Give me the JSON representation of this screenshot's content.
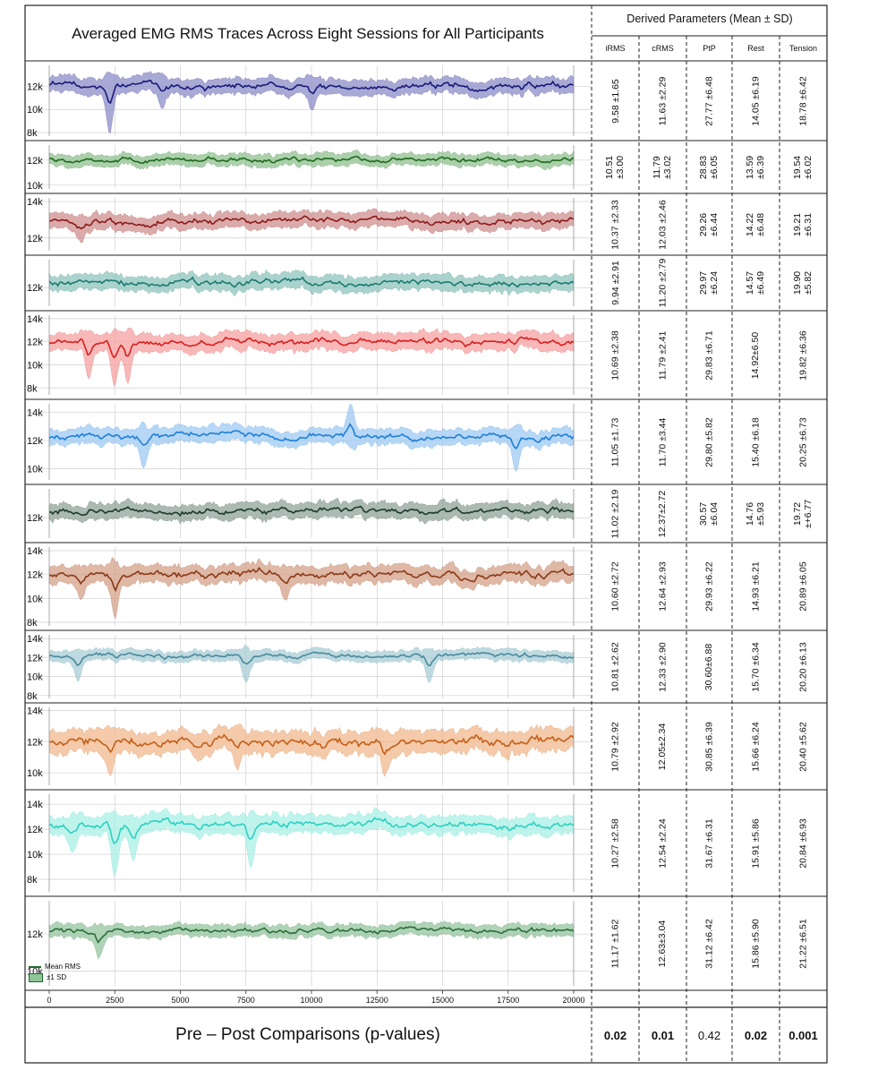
{
  "title": "Averaged EMG RMS Traces Across Eight Sessions for All Participants",
  "table": {
    "header": "Derived Parameters (Mean ± SD)",
    "columns": [
      "iRMS",
      "cRMS",
      "PtP",
      "Rest",
      "Tension"
    ],
    "rows": [
      [
        "9.58 ±1.65",
        "11.63 ±2.29",
        "27.77 ±6.48",
        "14.05 ±6.19",
        "18.78 ±6.42"
      ],
      [
        "10.51\n±3.00",
        "11.79\n±3.02",
        "28.83\n±6.05",
        "13.59\n±6.39",
        "19.54\n±6.02"
      ],
      [
        "10.37 ±2.33",
        "12.03 ±2.46",
        "29.26\n±6.44",
        "14.22\n±6.48",
        "19.21\n±6.31"
      ],
      [
        "9.94 ±2.91",
        "11.20 ±2.79",
        "29.97\n±6.24",
        "14.57\n±6.49",
        "19.90\n±5.82"
      ],
      [
        "10.69 ±2.38",
        "11.79 ±2.41",
        "29.83 ±6.71",
        "14.92±6.50",
        "19.82 ±6.36"
      ],
      [
        "11.05 ±1.73",
        "11.70 ±3.44",
        "29.80 ±5.82",
        "15.40 ±6.18",
        "20.25 ±6.73"
      ],
      [
        "11.02 ±2.19",
        "12.37±2.72",
        "30.57\n±6.04",
        "14.76\n±5.93",
        "19.72\n±+6.77"
      ],
      [
        "10.60 ±2.72",
        "12.64 ±2.93",
        "29.93 ±6.22",
        "14.93 ±6.21",
        "20.89 ±6.05"
      ],
      [
        "10.81 ±2.62",
        "12.33 ±2.90",
        "30.60±6.88",
        "15.70 ±6.34",
        "20.20 ±6.13"
      ],
      [
        "10.79 ±2.92",
        "12.05±2.34",
        "30.85 ±6.39",
        "15.66 ±6.24",
        "20.40 ±5.62"
      ],
      [
        "10.27 ±2.58",
        "12.54 ±2.24",
        "31.67 ±6.31",
        "15.91 ±5.86",
        "20.84 ±6.93"
      ],
      [
        "11.17 ±1.62",
        "12.63±3.04",
        "31.12 ±6.42",
        "15.86 ±5.90",
        "21.22 ±6.51"
      ]
    ],
    "footer_label": "Pre – Post Comparisons (p-values)",
    "p_values": [
      "0.02",
      "0.01",
      "0.42",
      "0.02",
      "0.001"
    ],
    "p_bold": [
      true,
      true,
      false,
      true,
      true
    ]
  },
  "legend": {
    "mean": "Mean RMS",
    "sd": "±1 SD"
  },
  "chart_data": {
    "type": "line",
    "title": "Averaged EMG RMS Traces Across Eight Sessions for All Participants",
    "x_ticks": [
      0,
      2500,
      5000,
      7500,
      10000,
      12500,
      15000,
      17500,
      20000
    ],
    "x_tick_labels": [
      "0",
      "2500",
      "5000",
      "7500",
      "10000",
      "12500",
      "15000",
      "17500",
      "20000"
    ],
    "xlim": [
      0,
      20000
    ],
    "grid": true,
    "legend_position": "bottom-left",
    "series": [
      {
        "color": "#1a1a7a",
        "fill": "#8c8cc8",
        "ylim": [
          7700,
          13800
        ],
        "y_ticks": [
          8000,
          10000,
          12000
        ],
        "y_tick_labels": [
          "8k",
          "10k",
          "12k"
        ],
        "mean": 12000,
        "sd": 600,
        "dips": [
          [
            2300,
            3400
          ],
          [
            4300,
            1500
          ],
          [
            10000,
            1500
          ]
        ]
      },
      {
        "color": "#1e6b1e",
        "fill": "#8fc08f",
        "ylim": [
          9700,
          13200
        ],
        "y_ticks": [
          10000,
          12000
        ],
        "y_tick_labels": [
          "10k",
          "12k"
        ],
        "mean": 12000,
        "sd": 420,
        "dips": []
      },
      {
        "color": "#8b1a1a",
        "fill": "#cf8f8f",
        "ylim": [
          11300,
          14200
        ],
        "y_ticks": [
          12000,
          14000
        ],
        "y_tick_labels": [
          "12k",
          "14k"
        ],
        "mean": 12900,
        "sd": 380,
        "dips": [
          [
            1200,
            600
          ]
        ]
      },
      {
        "color": "#1a7a70",
        "fill": "#8fc4be",
        "ylim": [
          10800,
          13800
        ],
        "y_ticks": [
          12000
        ],
        "y_tick_labels": [
          "12k"
        ],
        "mean": 12300,
        "sd": 450,
        "dips": []
      },
      {
        "color": "#d62020",
        "fill": "#f5a0a0",
        "ylim": [
          7400,
          14300
        ],
        "y_ticks": [
          8000,
          10000,
          12000,
          14000
        ],
        "y_tick_labels": [
          "8k",
          "10k",
          "12k",
          "14k"
        ],
        "mean": 12000,
        "sd": 650,
        "dips": [
          [
            1500,
            2200
          ],
          [
            2500,
            2800
          ],
          [
            3000,
            2600
          ]
        ]
      },
      {
        "color": "#1e7fd8",
        "fill": "#9ec9f2",
        "ylim": [
          9200,
          14600
        ],
        "y_ticks": [
          10000,
          12000,
          14000
        ],
        "y_tick_labels": [
          "10k",
          "12k",
          "14k"
        ],
        "mean": 12300,
        "sd": 500,
        "dips": [
          [
            3600,
            1700
          ],
          [
            11500,
            -1800
          ],
          [
            17800,
            1800
          ]
        ]
      },
      {
        "color": "#1e3a2e",
        "fill": "#8fa398",
        "ylim": [
          10800,
          13700
        ],
        "y_ticks": [
          12000
        ],
        "y_tick_labels": [
          "12k"
        ],
        "mean": 12400,
        "sd": 400,
        "dips": []
      },
      {
        "color": "#8b3a18",
        "fill": "#d4a088",
        "ylim": [
          7700,
          14300
        ],
        "y_ticks": [
          8000,
          10000,
          12000,
          14000
        ],
        "y_tick_labels": [
          "8k",
          "10k",
          "12k",
          "14k"
        ],
        "mean": 12000,
        "sd": 650,
        "dips": [
          [
            2500,
            2900
          ],
          [
            1200,
            1200
          ],
          [
            9000,
            1400
          ]
        ]
      },
      {
        "color": "#4a8a9e",
        "fill": "#a8cdd6",
        "ylim": [
          7700,
          14400
        ],
        "y_ticks": [
          8000,
          10000,
          12000,
          14000
        ],
        "y_tick_labels": [
          "8k",
          "10k",
          "12k",
          "14k"
        ],
        "mean": 12200,
        "sd": 500,
        "dips": [
          [
            1100,
            2000
          ],
          [
            7500,
            2300
          ],
          [
            14500,
            2200
          ]
        ]
      },
      {
        "color": "#c46018",
        "fill": "#f0b88e",
        "ylim": [
          9200,
          14200
        ],
        "y_ticks": [
          10000,
          12000,
          14000
        ],
        "y_tick_labels": [
          "10k",
          "12k",
          "14k"
        ],
        "mean": 12000,
        "sd": 650,
        "dips": [
          [
            2300,
            1600
          ],
          [
            7200,
            1200
          ],
          [
            12800,
            1200
          ]
        ]
      },
      {
        "color": "#2ed0c0",
        "fill": "#a8f0e6",
        "ylim": [
          7000,
          14800
        ],
        "y_ticks": [
          8000,
          10000,
          12000,
          14000
        ],
        "y_tick_labels": [
          "8k",
          "10k",
          "12k",
          "14k"
        ],
        "mean": 12400,
        "sd": 650,
        "dips": [
          [
            2500,
            3300
          ],
          [
            3200,
            1900
          ],
          [
            7700,
            2700
          ],
          [
            900,
            1500
          ]
        ]
      },
      {
        "color": "#2a6e3a",
        "fill": "#94c49e",
        "ylim": [
          9200,
          13800
        ],
        "y_ticks": [
          10000,
          12000
        ],
        "y_tick_labels": [
          "10k",
          "12k"
        ],
        "mean": 12200,
        "sd": 300,
        "dips": [
          [
            1900,
            1100
          ]
        ]
      }
    ]
  }
}
